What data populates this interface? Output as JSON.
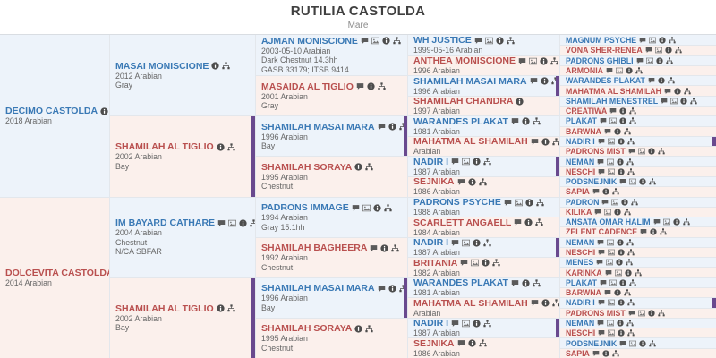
{
  "header": {
    "title": "RUTILIA CASTOLDA",
    "subtitle": "Mare"
  },
  "colors": {
    "sire_bg": "#edf3fa",
    "dam_bg": "#fbf0ec",
    "sire_name": "#3a79b5",
    "dam_name": "#b9504f",
    "duplicate_marker": "#69498e",
    "cell_border": "#e3e7ec"
  },
  "pedigree": {
    "columns": [
      {
        "generation": 1,
        "cells": [
          {
            "name": "DECIMO CASTOLDA",
            "sex": "M",
            "details": [
              "2018 Arabian"
            ],
            "icons": [
              "info"
            ]
          },
          {
            "name": "DOLCEVITA CASTOLDA",
            "sex": "F",
            "details": [
              "2014 Arabian"
            ],
            "icons": [
              "info"
            ]
          }
        ]
      },
      {
        "generation": 2,
        "cells": [
          {
            "name": "MASAI MONISCIONE",
            "sex": "M",
            "details": [
              "2012 Arabian",
              "Gray"
            ],
            "icons": [
              "info",
              "tree"
            ]
          },
          {
            "name": "SHAMILAH AL TIGLIO",
            "sex": "F",
            "details": [
              "2002 Arabian",
              "Bay"
            ],
            "icons": [
              "info",
              "tree"
            ],
            "dup": true
          },
          {
            "name": "IM BAYARD CATHARE",
            "sex": "M",
            "details": [
              "2004 Arabian",
              "Chestnut",
              "N/CA SBFAR"
            ],
            "icons": [
              "comment",
              "image",
              "info",
              "tree"
            ]
          },
          {
            "name": "SHAMILAH AL TIGLIO",
            "sex": "F",
            "details": [
              "2002 Arabian",
              "Bay"
            ],
            "icons": [
              "info",
              "tree"
            ],
            "dup": true
          }
        ]
      },
      {
        "generation": 3,
        "cells": [
          {
            "name": "AJMAN MONISCIONE",
            "sex": "M",
            "details": [
              "2003-05-10 Arabian",
              "Dark Chestnut 14.3hh",
              "GASB 33179; ITSB 9414"
            ],
            "icons": [
              "comment",
              "image",
              "info",
              "tree"
            ]
          },
          {
            "name": "MASAIDA AL TIGLIO",
            "sex": "F",
            "details": [
              "2001 Arabian",
              "Gray"
            ],
            "icons": [
              "comment",
              "info",
              "tree"
            ]
          },
          {
            "name": "SHAMILAH MASAI MARA",
            "sex": "M",
            "details": [
              "1996 Arabian",
              "Bay"
            ],
            "icons": [
              "comment",
              "info",
              "tree"
            ],
            "dup": true
          },
          {
            "name": "SHAMILAH SORAYA",
            "sex": "F",
            "details": [
              "1995 Arabian",
              "Chestnut"
            ],
            "icons": [
              "info",
              "tree"
            ]
          },
          {
            "name": "PADRONS IMMAGE",
            "sex": "M",
            "details": [
              "1994 Arabian",
              "Gray 15.1hh"
            ],
            "icons": [
              "comment",
              "image",
              "info",
              "tree"
            ]
          },
          {
            "name": "SHAMILAH BAGHEERA",
            "sex": "F",
            "details": [
              "1992 Arabian",
              "Chestnut"
            ],
            "icons": [
              "comment",
              "info",
              "tree"
            ]
          },
          {
            "name": "SHAMILAH MASAI MARA",
            "sex": "M",
            "details": [
              "1996 Arabian",
              "Bay"
            ],
            "icons": [
              "comment",
              "info",
              "tree"
            ],
            "dup": true
          },
          {
            "name": "SHAMILAH SORAYA",
            "sex": "F",
            "details": [
              "1995 Arabian",
              "Chestnut"
            ],
            "icons": [
              "info",
              "tree"
            ]
          }
        ]
      },
      {
        "generation": 4,
        "cells": [
          {
            "name": "WH JUSTICE",
            "sex": "M",
            "details": [
              "1999-05-16 Arabian"
            ],
            "icons": [
              "comment",
              "image",
              "info",
              "tree"
            ]
          },
          {
            "name": "ANTHEA MONISCIONE",
            "sex": "F",
            "details": [
              "1996 Arabian"
            ],
            "icons": [
              "comment",
              "image",
              "info",
              "tree"
            ]
          },
          {
            "name": "SHAMILAH MASAI MARA",
            "sex": "M",
            "details": [
              "1996 Arabian"
            ],
            "icons": [
              "comment",
              "info",
              "tree"
            ],
            "dup": true
          },
          {
            "name": "SHAMILAH CHANDRA",
            "sex": "F",
            "details": [
              "1997 Arabian"
            ],
            "icons": [
              "info"
            ]
          },
          {
            "name": "WARANDES PLAKAT",
            "sex": "M",
            "details": [
              "1981 Arabian"
            ],
            "icons": [
              "comment",
              "info",
              "tree"
            ]
          },
          {
            "name": "MAHATMA AL SHAMILAH",
            "sex": "F",
            "details": [
              "Arabian"
            ],
            "icons": [
              "comment",
              "info",
              "tree"
            ]
          },
          {
            "name": "NADIR I",
            "sex": "M",
            "details": [
              "1987 Arabian"
            ],
            "icons": [
              "comment",
              "image",
              "info",
              "tree"
            ],
            "dup": true
          },
          {
            "name": "SEJNIKA",
            "sex": "F",
            "details": [
              "1986 Arabian"
            ],
            "icons": [
              "comment",
              "info",
              "tree"
            ]
          },
          {
            "name": "PADRONS PSYCHE",
            "sex": "M",
            "details": [
              "1988 Arabian"
            ],
            "icons": [
              "comment",
              "image",
              "info",
              "tree"
            ]
          },
          {
            "name": "SCARLETT ANGAELL",
            "sex": "F",
            "details": [
              "1984 Arabian"
            ],
            "icons": [
              "comment",
              "info",
              "tree"
            ]
          },
          {
            "name": "NADIR I",
            "sex": "M",
            "details": [
              "1987 Arabian"
            ],
            "icons": [
              "comment",
              "image",
              "info",
              "tree"
            ],
            "dup": true
          },
          {
            "name": "BRITANIA",
            "sex": "F",
            "details": [
              "1982 Arabian"
            ],
            "icons": [
              "comment",
              "image",
              "info",
              "tree"
            ]
          },
          {
            "name": "WARANDES PLAKAT",
            "sex": "M",
            "details": [
              "1981 Arabian"
            ],
            "icons": [
              "comment",
              "info",
              "tree"
            ]
          },
          {
            "name": "MAHATMA AL SHAMILAH",
            "sex": "F",
            "details": [
              "Arabian"
            ],
            "icons": [
              "comment",
              "info",
              "tree"
            ]
          },
          {
            "name": "NADIR I",
            "sex": "M",
            "details": [
              "1987 Arabian"
            ],
            "icons": [
              "comment",
              "image",
              "info",
              "tree"
            ],
            "dup": true
          },
          {
            "name": "SEJNIKA",
            "sex": "F",
            "details": [
              "1986 Arabian"
            ],
            "icons": [
              "comment",
              "info",
              "tree"
            ]
          }
        ]
      },
      {
        "generation": 5,
        "cells": [
          {
            "name": "MAGNUM PSYCHE",
            "sex": "M",
            "icons": [
              "comment",
              "image",
              "info",
              "tree"
            ]
          },
          {
            "name": "VONA SHER-RENEA",
            "sex": "F",
            "icons": [
              "comment",
              "image",
              "info",
              "tree"
            ]
          },
          {
            "name": "PADRONS GHIBLI",
            "sex": "M",
            "icons": [
              "comment",
              "image",
              "info",
              "tree"
            ]
          },
          {
            "name": "ARMONIA",
            "sex": "F",
            "icons": [
              "comment",
              "image",
              "info",
              "tree"
            ]
          },
          {
            "name": "WARANDES PLAKAT",
            "sex": "M",
            "icons": [
              "comment",
              "info",
              "tree"
            ]
          },
          {
            "name": "MAHATMA AL SHAMILAH",
            "sex": "F",
            "icons": [
              "comment",
              "info",
              "tree"
            ]
          },
          {
            "name": "SHAMILAH MENESTREL",
            "sex": "M",
            "icons": [
              "comment",
              "image",
              "info",
              "tree"
            ]
          },
          {
            "name": "CREATIWA",
            "sex": "F",
            "icons": [
              "comment",
              "info",
              "tree"
            ]
          },
          {
            "name": "PLAKAT",
            "sex": "M",
            "icons": [
              "comment",
              "image",
              "info",
              "tree"
            ]
          },
          {
            "name": "BARWNA",
            "sex": "F",
            "icons": [
              "comment",
              "info",
              "tree"
            ]
          },
          {
            "name": "NADIR I",
            "sex": "M",
            "icons": [
              "comment",
              "image",
              "info",
              "tree"
            ],
            "dup": true
          },
          {
            "name": "PADRONS MIST",
            "sex": "F",
            "icons": [
              "comment",
              "image",
              "info",
              "tree"
            ]
          },
          {
            "name": "NEMAN",
            "sex": "M",
            "icons": [
              "comment",
              "image",
              "info",
              "tree"
            ]
          },
          {
            "name": "NESCHI",
            "sex": "F",
            "icons": [
              "comment",
              "image",
              "info",
              "tree"
            ]
          },
          {
            "name": "PODSNEJNIK",
            "sex": "M",
            "icons": [
              "comment",
              "image",
              "info",
              "tree"
            ]
          },
          {
            "name": "SAPIA",
            "sex": "F",
            "icons": [
              "comment",
              "info",
              "tree"
            ]
          },
          {
            "name": "PADRON",
            "sex": "M",
            "icons": [
              "comment",
              "image",
              "info",
              "tree"
            ]
          },
          {
            "name": "KILIKA",
            "sex": "F",
            "icons": [
              "comment",
              "image",
              "info",
              "tree"
            ]
          },
          {
            "name": "ANSATA OMAR HALIM",
            "sex": "M",
            "icons": [
              "comment",
              "image",
              "info",
              "tree"
            ]
          },
          {
            "name": "ZELENT CADENCE",
            "sex": "F",
            "icons": [
              "comment",
              "info",
              "tree"
            ]
          },
          {
            "name": "NEMAN",
            "sex": "M",
            "icons": [
              "comment",
              "image",
              "info",
              "tree"
            ]
          },
          {
            "name": "NESCHI",
            "sex": "F",
            "icons": [
              "comment",
              "image",
              "info",
              "tree"
            ]
          },
          {
            "name": "MENES",
            "sex": "M",
            "icons": [
              "comment",
              "image",
              "info",
              "tree"
            ]
          },
          {
            "name": "KARINKA",
            "sex": "F",
            "icons": [
              "comment",
              "image",
              "info",
              "tree"
            ]
          },
          {
            "name": "PLAKAT",
            "sex": "M",
            "icons": [
              "comment",
              "image",
              "info",
              "tree"
            ]
          },
          {
            "name": "BARWNA",
            "sex": "F",
            "icons": [
              "comment",
              "info",
              "tree"
            ]
          },
          {
            "name": "NADIR I",
            "sex": "M",
            "icons": [
              "comment",
              "image",
              "info",
              "tree"
            ],
            "dup": true
          },
          {
            "name": "PADRONS MIST",
            "sex": "F",
            "icons": [
              "comment",
              "image",
              "info",
              "tree"
            ]
          },
          {
            "name": "NEMAN",
            "sex": "M",
            "icons": [
              "comment",
              "image",
              "info",
              "tree"
            ]
          },
          {
            "name": "NESCHI",
            "sex": "F",
            "icons": [
              "comment",
              "image",
              "info",
              "tree"
            ]
          },
          {
            "name": "PODSNEJNIK",
            "sex": "M",
            "icons": [
              "comment",
              "image",
              "info",
              "tree"
            ]
          },
          {
            "name": "SAPIA",
            "sex": "F",
            "icons": [
              "comment",
              "info",
              "tree"
            ]
          }
        ]
      }
    ]
  }
}
